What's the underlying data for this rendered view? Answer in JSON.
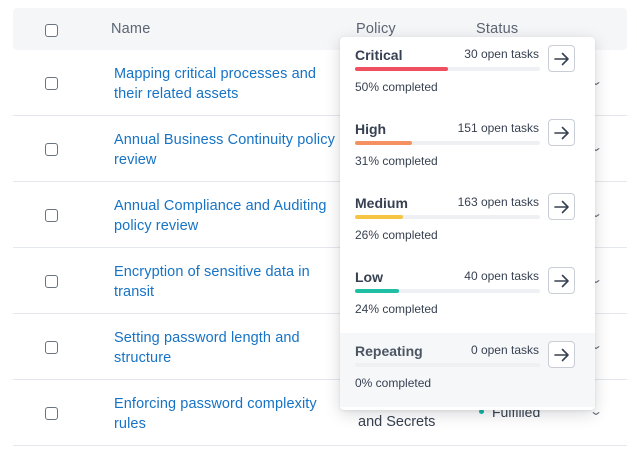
{
  "table": {
    "headers": {
      "name": "Name",
      "policy": "Policy",
      "status": "Status"
    },
    "rows": [
      {
        "name": "Mapping critical processes and their related assets",
        "policy": "",
        "status": ""
      },
      {
        "name": "Annual Business Continuity policy review",
        "policy": "",
        "status": ""
      },
      {
        "name": "Annual Compliance and Auditing policy review",
        "policy": "",
        "status": ""
      },
      {
        "name": "Encryption of sensitive data in transit",
        "policy": "",
        "status": ""
      },
      {
        "name": "Setting password length and structure",
        "policy": "",
        "status": ""
      },
      {
        "name": "Enforcing password complexity rules",
        "policy": "and Secrets",
        "status": "Fulfilled"
      }
    ]
  },
  "priority_dropdown": {
    "items": [
      {
        "label": "Critical",
        "tasks": "30 open tasks",
        "completed_text": "50% completed",
        "progress": 0.5,
        "color": "#ef4f5f"
      },
      {
        "label": "High",
        "tasks": "151 open tasks",
        "completed_text": "31% completed",
        "progress": 0.31,
        "color": "#f59160"
      },
      {
        "label": "Medium",
        "tasks": "163 open tasks",
        "completed_text": "26% completed",
        "progress": 0.26,
        "color": "#f6c544"
      },
      {
        "label": "Low",
        "tasks": "40 open tasks",
        "completed_text": "24% completed",
        "progress": 0.24,
        "color": "#1fbfa6"
      },
      {
        "label": "Repeating",
        "tasks": "0 open tasks",
        "completed_text": "0% completed",
        "progress": 0.0,
        "color": "#9ca3af"
      }
    ]
  },
  "icons": {
    "arrow": "arrow-right-icon",
    "chevron": "chevron-down-icon",
    "status_dot": "status-dot"
  },
  "colors": {
    "link": "#1673c5",
    "header_bg": "#f5f6f8",
    "status_fulfilled": "#13b8a4"
  }
}
